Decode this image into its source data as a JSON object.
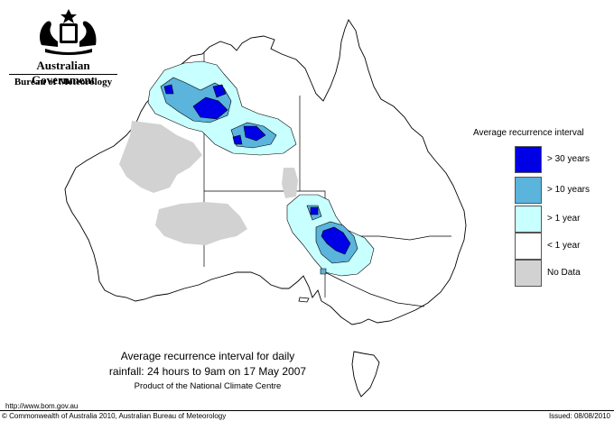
{
  "header": {
    "government": "Australian Government",
    "bureau": "Bureau of Meteorology"
  },
  "legend": {
    "title": "Average recurrence interval",
    "items": [
      {
        "label": "> 30 years",
        "color": "#0000e6"
      },
      {
        "label": "> 10 years",
        "color": "#5ab4dc"
      },
      {
        "label": "> 1 year",
        "color": "#c8ffff"
      },
      {
        "label": "< 1 year",
        "color": "#ffffff"
      },
      {
        "label": "No Data",
        "color": "#d2d2d2"
      }
    ]
  },
  "caption": {
    "line1": "Average recurrence interval for daily",
    "line2": "rainfall: 24 hours to 9am on 17 May 2007",
    "line3": "Product of the National Climate Centre"
  },
  "footer": {
    "url": "http://www.bom.gov.au",
    "copyright": "© Commonwealth of Australia 2010, Australian Bureau of Meteorology",
    "issued": "Issued: 08/08/2010"
  }
}
